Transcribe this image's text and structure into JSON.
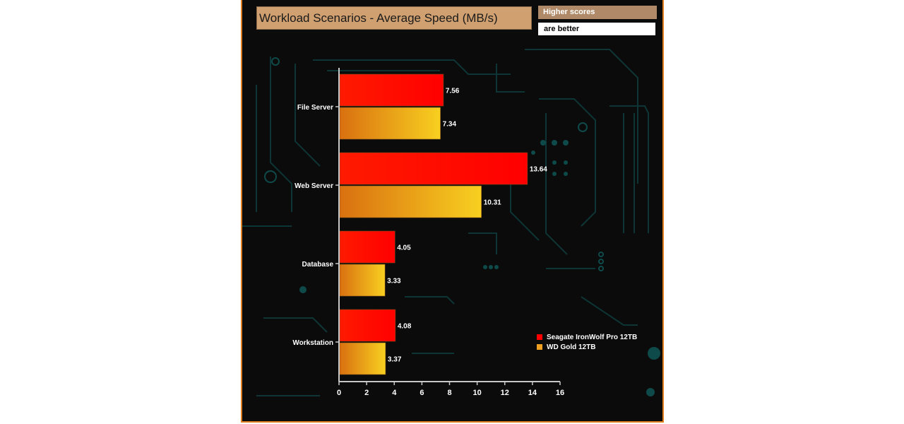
{
  "chart_data": {
    "type": "bar",
    "orientation": "horizontal",
    "title": "Workload Scenarios - Average Speed (MB/s)",
    "note": [
      "Higher scores",
      "are better"
    ],
    "categories": [
      "File Server",
      "Web Server",
      "Database",
      "Workstation"
    ],
    "series": [
      {
        "name": "Seagate IronWolf Pro 12TB",
        "values": [
          7.56,
          13.64,
          4.05,
          4.08
        ],
        "color": "#ff0000"
      },
      {
        "name": "WD Gold 12TB",
        "values": [
          7.34,
          10.31,
          3.33,
          3.37
        ],
        "color": "#f0a020"
      }
    ],
    "xlim": [
      0,
      16
    ],
    "xticks": [
      0,
      2,
      4,
      6,
      8,
      10,
      12,
      14,
      16
    ],
    "legend_position": "bottom-right",
    "grid": false
  }
}
